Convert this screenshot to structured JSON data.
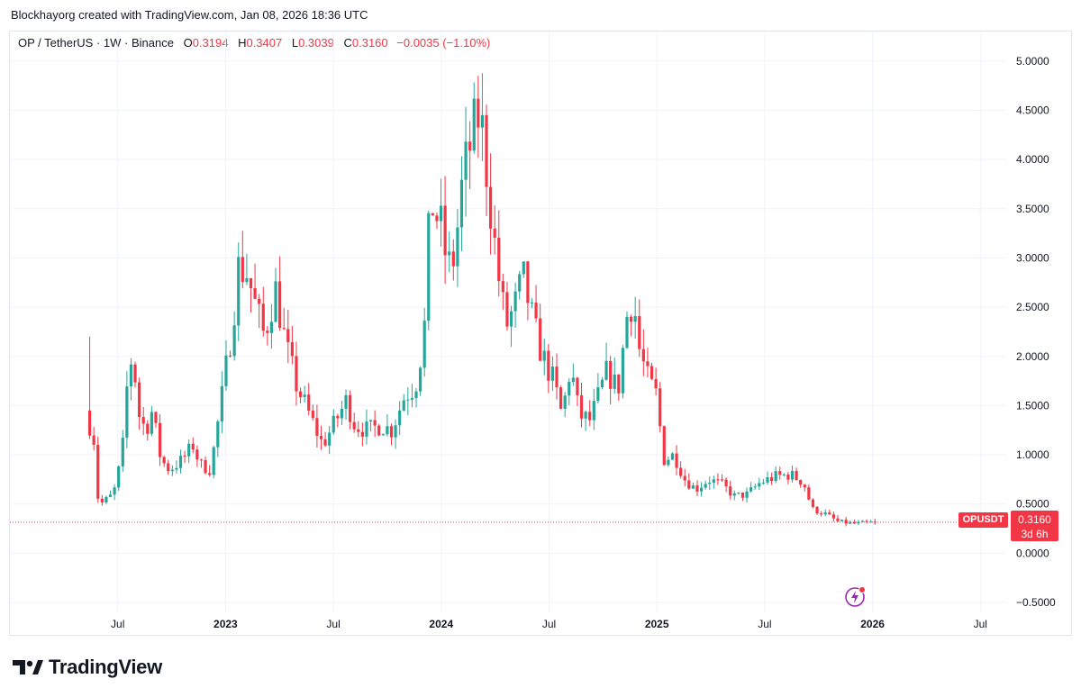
{
  "attribution": "Blockhayorg created with TradingView.com, Jan 08, 2026 18:36 UTC",
  "legend": {
    "symbol": "OP / TetherUS · 1W · Binance",
    "o_label": "O",
    "o_value": "0.3194",
    "h_label": "H",
    "h_value": "0.3407",
    "l_label": "L",
    "l_value": "0.3039",
    "c_label": "C",
    "c_value": "0.3160",
    "change": "−0.0035 (−1.10%)"
  },
  "price_tag": {
    "symbol": "OPUSDT",
    "price": "0.3160",
    "countdown": "3d 6h"
  },
  "brand": "TradingView",
  "colors": {
    "up": "#26a69a",
    "down": "#f23645",
    "grid": "#f0f3fa",
    "text": "#131722"
  },
  "chart_data": {
    "type": "candlestick",
    "title": "OP / TetherUS · 1W · Binance",
    "ylim": [
      -0.6,
      5.3
    ],
    "yticks": [
      5.0,
      4.5,
      4.0,
      3.5,
      3.0,
      2.5,
      2.0,
      1.5,
      1.0,
      0.5,
      0.0,
      -0.5
    ],
    "ytick_labels": [
      "5.0000",
      "4.5000",
      "4.0000",
      "3.5000",
      "3.0000",
      "2.5000",
      "2.0000",
      "1.5000",
      "1.0000",
      "0.5000",
      "0.0000",
      "−0.5000"
    ],
    "xticks": [
      {
        "label": "Jul",
        "t": 2022.5
      },
      {
        "label": "2023",
        "t": 2023.0
      },
      {
        "label": "Jul",
        "t": 2023.5
      },
      {
        "label": "2024",
        "t": 2024.0
      },
      {
        "label": "Jul",
        "t": 2024.5
      },
      {
        "label": "2025",
        "t": 2025.0
      },
      {
        "label": "Jul",
        "t": 2025.5
      },
      {
        "label": "2026",
        "t": 2026.0
      },
      {
        "label": "Jul",
        "t": 2026.5
      }
    ],
    "last_price": 0.316,
    "anchors": [
      [
        2022.37,
        1.3
      ],
      [
        2022.39,
        1.15
      ],
      [
        2022.4,
        0.62
      ],
      [
        2022.42,
        0.5
      ],
      [
        2022.45,
        0.55
      ],
      [
        2022.48,
        0.6
      ],
      [
        2022.52,
        1.0
      ],
      [
        2022.55,
        1.9
      ],
      [
        2022.57,
        2.0
      ],
      [
        2022.6,
        1.4
      ],
      [
        2022.63,
        1.25
      ],
      [
        2022.66,
        1.45
      ],
      [
        2022.7,
        0.95
      ],
      [
        2022.74,
        0.85
      ],
      [
        2022.8,
        0.95
      ],
      [
        2022.85,
        1.1
      ],
      [
        2022.88,
        0.9
      ],
      [
        2022.93,
        0.85
      ],
      [
        2022.97,
        1.4
      ],
      [
        2023.03,
        2.3
      ],
      [
        2023.06,
        2.9
      ],
      [
        2023.1,
        2.85
      ],
      [
        2023.14,
        2.5
      ],
      [
        2023.18,
        2.2
      ],
      [
        2023.23,
        2.7
      ],
      [
        2023.28,
        2.1
      ],
      [
        2023.33,
        1.7
      ],
      [
        2023.4,
        1.35
      ],
      [
        2023.45,
        1.1
      ],
      [
        2023.5,
        1.3
      ],
      [
        2023.56,
        1.55
      ],
      [
        2023.6,
        1.3
      ],
      [
        2023.66,
        1.25
      ],
      [
        2023.72,
        1.3
      ],
      [
        2023.77,
        1.25
      ],
      [
        2023.83,
        1.6
      ],
      [
        2023.88,
        1.7
      ],
      [
        2023.92,
        2.2
      ],
      [
        2023.95,
        3.6
      ],
      [
        2024.0,
        3.3
      ],
      [
        2024.03,
        2.9
      ],
      [
        2024.06,
        3.0
      ],
      [
        2024.1,
        3.8
      ],
      [
        2024.14,
        4.2
      ],
      [
        2024.18,
        4.5
      ],
      [
        2024.22,
        3.7
      ],
      [
        2024.26,
        2.9
      ],
      [
        2024.3,
        2.3
      ],
      [
        2024.34,
        2.5
      ],
      [
        2024.38,
        2.8
      ],
      [
        2024.43,
        2.3
      ],
      [
        2024.47,
        2.0
      ],
      [
        2024.52,
        1.75
      ],
      [
        2024.56,
        1.4
      ],
      [
        2024.6,
        1.9
      ],
      [
        2024.64,
        1.4
      ],
      [
        2024.69,
        1.35
      ],
      [
        2024.73,
        1.6
      ],
      [
        2024.77,
        1.85
      ],
      [
        2024.82,
        1.65
      ],
      [
        2024.86,
        2.4
      ],
      [
        2024.89,
        2.6
      ],
      [
        2024.92,
        2.05
      ],
      [
        2024.96,
        1.75
      ],
      [
        2025.0,
        1.6
      ],
      [
        2025.03,
        0.95
      ],
      [
        2025.08,
        1.0
      ],
      [
        2025.13,
        0.75
      ],
      [
        2025.18,
        0.65
      ],
      [
        2025.24,
        0.75
      ],
      [
        2025.3,
        0.7
      ],
      [
        2025.36,
        0.58
      ],
      [
        2025.42,
        0.6
      ],
      [
        2025.48,
        0.72
      ],
      [
        2025.55,
        0.78
      ],
      [
        2025.62,
        0.8
      ],
      [
        2025.68,
        0.72
      ],
      [
        2025.72,
        0.45
      ],
      [
        2025.78,
        0.4
      ],
      [
        2025.84,
        0.32
      ],
      [
        2025.92,
        0.3
      ],
      [
        2026.02,
        0.316
      ]
    ]
  }
}
